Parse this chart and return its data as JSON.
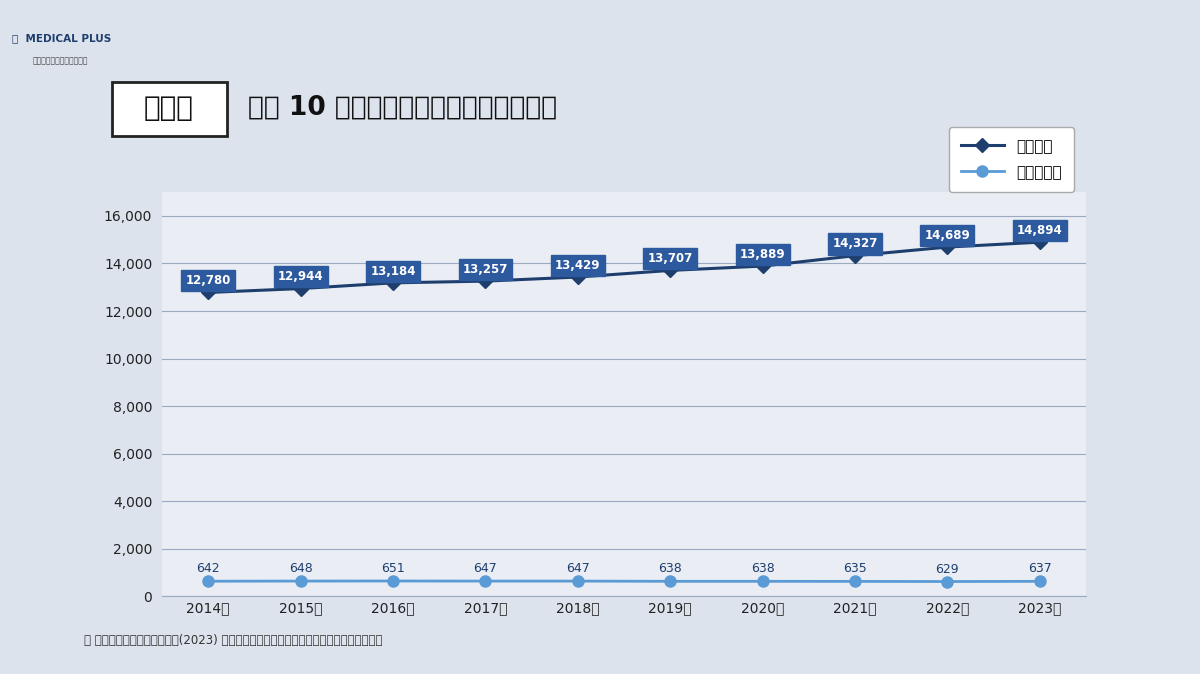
{
  "years": [
    "2014年",
    "2015年",
    "2016年",
    "2017年",
    "2018年",
    "2019年",
    "2020年",
    "2021年",
    "2022年",
    "2023年"
  ],
  "clinic_values": [
    12780,
    12944,
    13184,
    13257,
    13429,
    13707,
    13889,
    14327,
    14689,
    14894
  ],
  "hospital_values": [
    642,
    648,
    651,
    647,
    647,
    638,
    638,
    635,
    629,
    637
  ],
  "clinic_color": "#1e3f6e",
  "hospital_color": "#5b9bd5",
  "background_color": "#dce3ed",
  "plot_bg_color": "#eaeef4",
  "grid_color": "#9baac0",
  "label_box_color": "#2d5a9e",
  "title_box_text": "東京都",
  "title_main": "過去 10 年間の診療所数と病院数の推移",
  "legend_clinic": "診療所数",
  "legend_hospital": "病　院　数",
  "source_text": "＊ 出典：厚生労働省「令和５(2023) 年医療施設（静態・動態）調査・病院報告の概況」",
  "ylim_min": 0,
  "ylim_max": 17000,
  "yticks": [
    0,
    2000,
    4000,
    6000,
    8000,
    10000,
    12000,
    14000,
    16000
  ]
}
